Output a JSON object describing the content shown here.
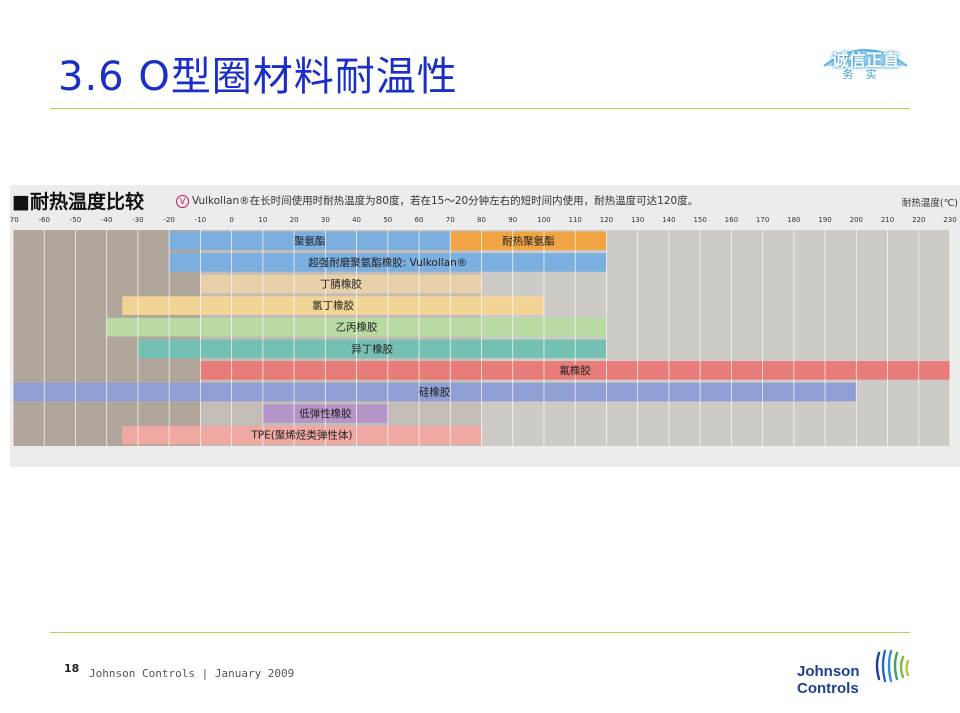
{
  "slide": {
    "title": "3.6  O型圈材料耐温性",
    "badge_main": "诚信正直",
    "badge_sub": "务实",
    "page_number": "18",
    "footer": "Johnson Controls | January 2009",
    "logo_line1": "Johnson",
    "logo_line2": "Controls",
    "colors": {
      "title": "#1a2ec8",
      "rule": "#b9cc57",
      "logo": "#1e3f92"
    }
  },
  "chart_data": {
    "type": "bar",
    "orientation": "horizontal-range",
    "title": "■耐热温度比较",
    "note": "Vulkollan®在长时间使用时耐热温度为80度，若在15～20分钟左右的短时间内使用，耐热温度可达120度。",
    "xlabel": "耐热温度(℃)",
    "xlim": [
      -70,
      230
    ],
    "xticks": [
      -70,
      -60,
      -50,
      -40,
      -30,
      -20,
      -10,
      0,
      10,
      20,
      30,
      40,
      50,
      60,
      70,
      80,
      90,
      100,
      110,
      120,
      130,
      140,
      150,
      160,
      170,
      180,
      190,
      200,
      210,
      220,
      230
    ],
    "grid": true,
    "rows": [
      {
        "segments": [
          {
            "name": "聚氨酯",
            "from": -20,
            "to": 70,
            "color": "#7aafe0"
          },
          {
            "name": "耐热聚氨酯",
            "from": 70,
            "to": 120,
            "color": "#f0a443"
          }
        ]
      },
      {
        "segments": [
          {
            "name": "超强耐磨聚氨酯橡胶: Vulkollan®",
            "from": -20,
            "to": 120,
            "color": "#7aafe0"
          }
        ]
      },
      {
        "segments": [
          {
            "name": "丁腈橡胶",
            "from": -10,
            "to": 80,
            "color": "#e8d0a8"
          }
        ]
      },
      {
        "segments": [
          {
            "name": "氯丁橡胶",
            "from": -35,
            "to": 100,
            "color": "#f2d596"
          }
        ]
      },
      {
        "segments": [
          {
            "name": "乙丙橡胶",
            "from": -40,
            "to": 120,
            "color": "#b8dba4"
          }
        ]
      },
      {
        "segments": [
          {
            "name": "异丁橡胶",
            "from": -30,
            "to": 120,
            "color": "#74c0b2"
          }
        ]
      },
      {
        "segments": [
          {
            "name": "氟橡胶",
            "from": -10,
            "to": 230,
            "color": "#e87c7a"
          }
        ]
      },
      {
        "segments": [
          {
            "name": "硅橡胶",
            "from": -70,
            "to": 200,
            "color": "#8f9ed4"
          }
        ]
      },
      {
        "segments": [
          {
            "name": "低弹性橡胶",
            "from": 10,
            "to": 50,
            "color": "#b594c8"
          }
        ]
      },
      {
        "segments": [
          {
            "name": "TPE(聚烯烃类弹性体)",
            "from": -35,
            "to": 80,
            "color": "#f0a8a2"
          }
        ]
      }
    ],
    "bg_colors": {
      "cold": "#b0a69c",
      "mid": "#c4bcb6",
      "hot": "#cecac6",
      "grid": "#ffffff"
    }
  }
}
